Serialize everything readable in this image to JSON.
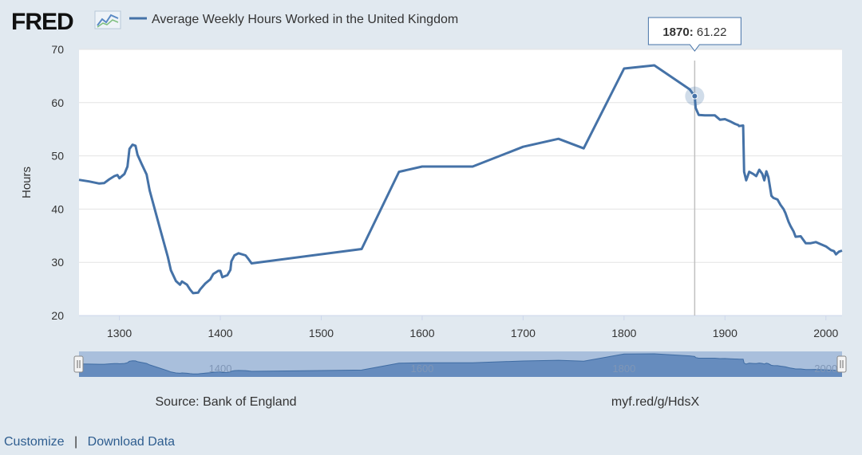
{
  "brand": "FRED",
  "chart_data": {
    "type": "line",
    "title": "Average Weekly Hours Worked in the United Kingdom",
    "xlabel": "",
    "ylabel": "Hours",
    "xlim": [
      1260,
      2016
    ],
    "ylim": [
      20,
      70
    ],
    "x_ticks": [
      1300,
      1400,
      1500,
      1600,
      1700,
      1800,
      1900,
      2000
    ],
    "y_ticks": [
      20,
      30,
      40,
      50,
      60,
      70
    ],
    "grid": true,
    "series": [
      {
        "name": "Average Weekly Hours Worked in the United Kingdom",
        "color": "#4572a7",
        "points": [
          [
            1260,
            45.5
          ],
          [
            1270,
            45.2
          ],
          [
            1280,
            44.8
          ],
          [
            1285,
            44.9
          ],
          [
            1290,
            45.6
          ],
          [
            1295,
            46.2
          ],
          [
            1298,
            46.4
          ],
          [
            1300,
            45.8
          ],
          [
            1305,
            46.6
          ],
          [
            1308,
            48.0
          ],
          [
            1310,
            51.3
          ],
          [
            1313,
            52.1
          ],
          [
            1316,
            51.9
          ],
          [
            1318,
            50.2
          ],
          [
            1322,
            48.5
          ],
          [
            1327,
            46.5
          ],
          [
            1330,
            43.5
          ],
          [
            1340,
            36.5
          ],
          [
            1348,
            31.0
          ],
          [
            1351,
            28.5
          ],
          [
            1356,
            26.5
          ],
          [
            1360,
            25.8
          ],
          [
            1362,
            26.4
          ],
          [
            1367,
            25.8
          ],
          [
            1370,
            24.9
          ],
          [
            1373,
            24.2
          ],
          [
            1378,
            24.3
          ],
          [
            1380,
            24.9
          ],
          [
            1385,
            26.0
          ],
          [
            1390,
            26.8
          ],
          [
            1393,
            27.8
          ],
          [
            1398,
            28.4
          ],
          [
            1400,
            28.4
          ],
          [
            1402,
            27.2
          ],
          [
            1407,
            27.6
          ],
          [
            1410,
            28.6
          ],
          [
            1411,
            30.2
          ],
          [
            1414,
            31.3
          ],
          [
            1418,
            31.7
          ],
          [
            1425,
            31.3
          ],
          [
            1428,
            30.6
          ],
          [
            1431,
            29.8
          ],
          [
            1540,
            32.5
          ],
          [
            1577,
            47.0
          ],
          [
            1600,
            48.0
          ],
          [
            1650,
            48.0
          ],
          [
            1700,
            51.7
          ],
          [
            1735,
            53.2
          ],
          [
            1760,
            51.4
          ],
          [
            1800,
            66.4
          ],
          [
            1830,
            67.0
          ],
          [
            1865,
            62.5
          ],
          [
            1870,
            61.22
          ],
          [
            1871,
            59.0
          ],
          [
            1874,
            57.7
          ],
          [
            1880,
            57.6
          ],
          [
            1890,
            57.6
          ],
          [
            1895,
            56.8
          ],
          [
            1900,
            56.9
          ],
          [
            1905,
            56.5
          ],
          [
            1910,
            56.0
          ],
          [
            1913,
            55.8
          ],
          [
            1914,
            55.6
          ],
          [
            1918,
            55.7
          ],
          [
            1919,
            47.0
          ],
          [
            1921,
            45.4
          ],
          [
            1924,
            47.0
          ],
          [
            1928,
            46.6
          ],
          [
            1931,
            46.2
          ],
          [
            1934,
            47.4
          ],
          [
            1937,
            46.6
          ],
          [
            1939,
            45.4
          ],
          [
            1941,
            47.1
          ],
          [
            1943,
            46.0
          ],
          [
            1946,
            42.5
          ],
          [
            1948,
            42.1
          ],
          [
            1952,
            41.8
          ],
          [
            1955,
            40.8
          ],
          [
            1958,
            40.0
          ],
          [
            1960,
            39.2
          ],
          [
            1963,
            37.6
          ],
          [
            1965,
            36.8
          ],
          [
            1968,
            35.8
          ],
          [
            1970,
            34.8
          ],
          [
            1975,
            34.9
          ],
          [
            1980,
            33.6
          ],
          [
            1985,
            33.6
          ],
          [
            1990,
            33.8
          ],
          [
            1995,
            33.4
          ],
          [
            2000,
            33.0
          ],
          [
            2005,
            32.3
          ],
          [
            2008,
            32.1
          ],
          [
            2010,
            31.5
          ],
          [
            2013,
            32.0
          ],
          [
            2016,
            32.2
          ]
        ]
      }
    ],
    "tooltip": {
      "x_label": "1870",
      "value_label": "61.22",
      "x": 1870,
      "y": 61.22
    },
    "navigator": {
      "labels": [
        "1400",
        "1600",
        "1800",
        "2000"
      ]
    }
  },
  "footer": {
    "source": "Source: Bank of England",
    "short_url": "myf.red/g/HdsX",
    "customize": "Customize",
    "separator": "|",
    "download": "Download Data"
  },
  "colors": {
    "line": "#4572a7",
    "plot_bg": "#ffffff",
    "page_bg": "#e1e9f0",
    "grid": "#e3e3e3",
    "navigator_fill": "#5b83b8",
    "link": "#2e5d8f"
  }
}
